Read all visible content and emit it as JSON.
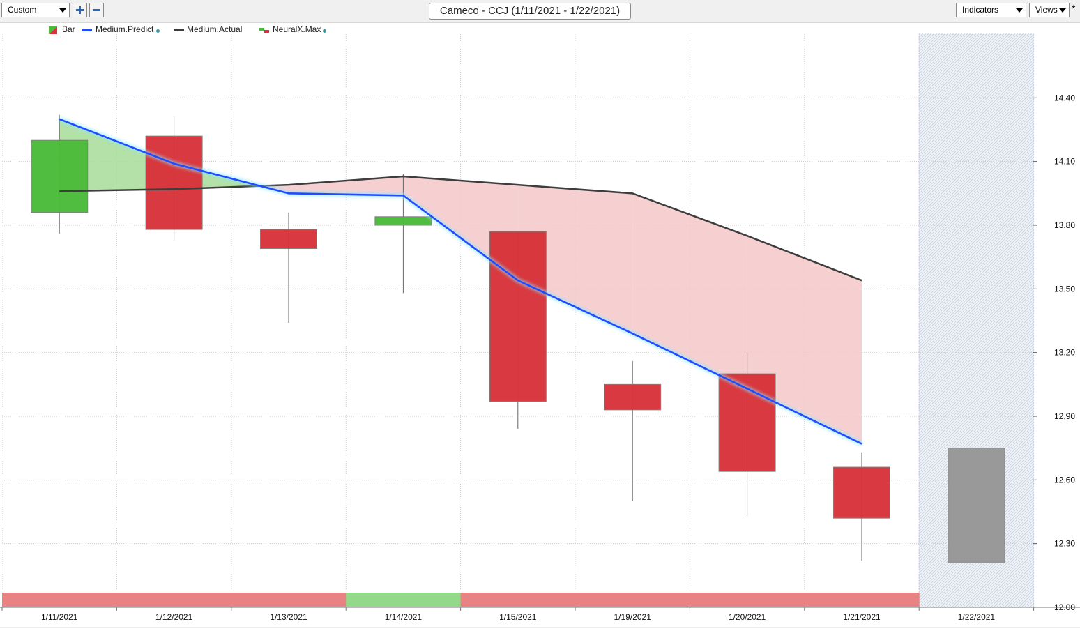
{
  "toolbar": {
    "view_select": "Custom",
    "title": "Cameco - CCJ (1/11/2021 - 1/22/2021)",
    "indicators_label": "Indicators",
    "views_label": "Views",
    "star": "*"
  },
  "colors": {
    "bull": "#4cbb3a",
    "bear": "#d8333a",
    "neutral": "#979797",
    "predict": "#1f4cff",
    "actual": "#3d3d3d",
    "fill_up": "#a6dc98",
    "fill_down": "#f5c8c9",
    "band_red": "#e88283",
    "band_green": "#92d98a"
  },
  "chart_data": {
    "type": "candlestick",
    "title": "Cameco - CCJ (1/11/2021 - 1/22/2021)",
    "ylim": [
      12.0,
      14.7
    ],
    "yticks": [
      "14.40",
      "14.10",
      "13.80",
      "13.50",
      "13.20",
      "12.90",
      "12.60",
      "12.30",
      "12.00"
    ],
    "categories": [
      "1/11/2021",
      "1/12/2021",
      "1/13/2021",
      "1/14/2021",
      "1/15/2021",
      "1/19/2021",
      "1/20/2021",
      "1/21/2021",
      "1/22/2021"
    ],
    "legend": [
      {
        "name": "Bar"
      },
      {
        "name": "Medium.Predict"
      },
      {
        "name": "Medium.Actual"
      },
      {
        "name": "NeuralX.Max"
      }
    ],
    "candles": [
      {
        "date": "1/11/2021",
        "open": 13.86,
        "close": 14.2,
        "high": 14.32,
        "low": 13.76,
        "dir": "up"
      },
      {
        "date": "1/12/2021",
        "open": 14.22,
        "close": 13.78,
        "high": 14.31,
        "low": 13.73,
        "dir": "down"
      },
      {
        "date": "1/13/2021",
        "open": 13.78,
        "close": 13.69,
        "high": 13.86,
        "low": 13.34,
        "dir": "down"
      },
      {
        "date": "1/14/2021",
        "open": 13.8,
        "close": 13.84,
        "high": 14.04,
        "low": 13.48,
        "dir": "up"
      },
      {
        "date": "1/15/2021",
        "open": 13.77,
        "close": 12.97,
        "high": 13.77,
        "low": 12.84,
        "dir": "down"
      },
      {
        "date": "1/19/2021",
        "open": 13.05,
        "close": 12.93,
        "high": 13.16,
        "low": 12.5,
        "dir": "down"
      },
      {
        "date": "1/20/2021",
        "open": 13.1,
        "close": 12.64,
        "high": 13.2,
        "low": 12.43,
        "dir": "down"
      },
      {
        "date": "1/21/2021",
        "open": 12.66,
        "close": 12.42,
        "high": 12.73,
        "low": 12.22,
        "dir": "down"
      },
      {
        "date": "1/22/2021",
        "open": 12.75,
        "close": 12.21,
        "high": 12.75,
        "low": 12.21,
        "dir": "forecast"
      }
    ],
    "series": [
      {
        "name": "Medium.Predict",
        "values": [
          14.3,
          14.09,
          13.95,
          13.94,
          13.54,
          13.29,
          13.03,
          12.77,
          null
        ]
      },
      {
        "name": "Medium.Actual",
        "values": [
          13.96,
          13.97,
          13.99,
          14.03,
          13.99,
          13.95,
          13.75,
          13.54,
          null
        ]
      }
    ],
    "signal_band": [
      "down",
      "down",
      "down",
      "up",
      "down",
      "down",
      "down",
      "down",
      "none"
    ],
    "grid": true,
    "legend_position": "top-left"
  }
}
